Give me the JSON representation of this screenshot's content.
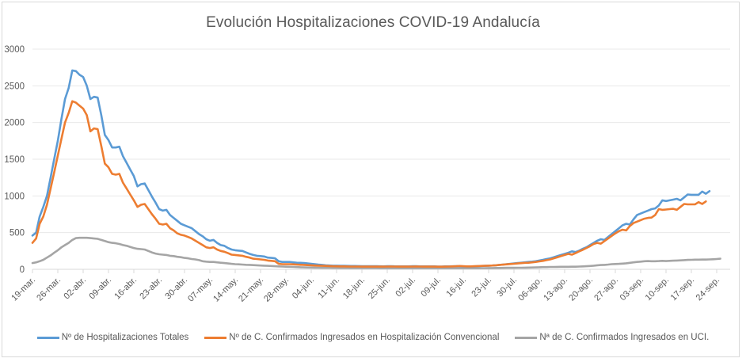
{
  "chart_data": {
    "type": "line",
    "title": "Evolución Hospitalizaciones COVID-19 Andalucía",
    "xlabel": "",
    "ylabel": "",
    "ylim": [
      0,
      3000
    ],
    "yticks": [
      "0",
      "500",
      "1000",
      "1500",
      "2000",
      "2500",
      "3000"
    ],
    "ytick_values": [
      0,
      500,
      1000,
      1500,
      2000,
      2500,
      3000
    ],
    "grid": true,
    "legend_position": "bottom",
    "x_start": "19-mar.",
    "x_step_days": 1,
    "xtick_every_days": 7,
    "xticks": [
      "19-mar.",
      "26-mar.",
      "02-abr.",
      "09-abr.",
      "16-abr.",
      "23-abr.",
      "30-abr.",
      "07-may.",
      "14-may.",
      "21-may.",
      "28-may.",
      "04-jun.",
      "11-jun.",
      "18-jun.",
      "25-jun.",
      "02-jul.",
      "09-jul.",
      "16-jul.",
      "23-jul.",
      "30-jul.",
      "06-ago.",
      "13-ago.",
      "20-ago.",
      "27-ago.",
      "03-sep.",
      "10-sep.",
      "17-sep.",
      "24-sep."
    ],
    "series": [
      {
        "name": "Nº de Hospitalizaciones Totales",
        "color": "#5b9bd5",
        "values": [
          460,
          500,
          720,
          850,
          1000,
          1250,
          1500,
          1750,
          2050,
          2320,
          2470,
          2710,
          2700,
          2650,
          2620,
          2500,
          2320,
          2350,
          2340,
          2100,
          1830,
          1760,
          1660,
          1660,
          1670,
          1540,
          1450,
          1360,
          1270,
          1130,
          1160,
          1170,
          1080,
          990,
          910,
          820,
          800,
          810,
          740,
          700,
          660,
          620,
          600,
          580,
          560,
          520,
          480,
          450,
          410,
          390,
          400,
          360,
          330,
          320,
          290,
          270,
          260,
          255,
          250,
          230,
          210,
          195,
          185,
          180,
          175,
          160,
          155,
          150,
          110,
          100,
          100,
          100,
          95,
          90,
          88,
          85,
          80,
          75,
          70,
          65,
          60,
          55,
          52,
          50,
          50,
          48,
          47,
          46,
          45,
          45,
          44,
          43,
          42,
          42,
          42,
          42,
          41,
          40,
          42,
          43,
          41,
          40,
          40,
          40,
          40,
          42,
          42,
          40,
          40,
          40,
          40,
          40,
          38,
          38,
          40,
          40,
          41,
          42,
          42,
          40,
          38,
          38,
          40,
          42,
          45,
          48,
          50,
          52,
          55,
          60,
          65,
          70,
          75,
          80,
          85,
          90,
          95,
          100,
          105,
          110,
          120,
          130,
          140,
          150,
          165,
          180,
          195,
          210,
          225,
          245,
          235,
          255,
          280,
          300,
          330,
          360,
          390,
          410,
          400,
          440,
          480,
          520,
          560,
          600,
          620,
          610,
          680,
          740,
          760,
          780,
          800,
          820,
          830,
          870,
          940,
          930,
          940,
          950,
          960,
          940,
          980,
          1020,
          1015,
          1015,
          1015,
          1060,
          1030,
          1065
        ]
      },
      {
        "name": "Nº de C. Confirmados Ingresados en Hospitalización Convencional",
        "color": "#ed7d31",
        "values": [
          360,
          420,
          620,
          720,
          880,
          1100,
          1320,
          1550,
          1780,
          2000,
          2130,
          2290,
          2270,
          2230,
          2190,
          2100,
          1880,
          1920,
          1910,
          1680,
          1440,
          1390,
          1300,
          1290,
          1300,
          1180,
          1100,
          1020,
          940,
          850,
          880,
          890,
          820,
          750,
          690,
          620,
          610,
          620,
          560,
          530,
          490,
          470,
          460,
          440,
          420,
          390,
          360,
          330,
          300,
          290,
          300,
          270,
          250,
          240,
          220,
          200,
          195,
          190,
          185,
          170,
          160,
          145,
          140,
          135,
          130,
          120,
          115,
          110,
          75,
          70,
          70,
          70,
          68,
          65,
          62,
          60,
          57,
          55,
          52,
          50,
          48,
          46,
          44,
          42,
          41,
          40,
          40,
          39,
          38,
          38,
          38,
          37,
          37,
          37,
          37,
          38,
          37,
          37,
          38,
          39,
          38,
          37,
          37,
          37,
          37,
          38,
          39,
          38,
          37,
          37,
          37,
          37,
          36,
          36,
          37,
          38,
          40,
          42,
          45,
          42,
          40,
          40,
          42,
          44,
          46,
          48,
          50,
          52,
          55,
          60,
          64,
          68,
          72,
          76,
          80,
          84,
          88,
          90,
          95,
          100,
          108,
          116,
          125,
          135,
          150,
          165,
          180,
          195,
          210,
          200,
          220,
          245,
          265,
          290,
          315,
          345,
          360,
          350,
          385,
          420,
          455,
          490,
          520,
          540,
          530,
          590,
          630,
          650,
          670,
          690,
          700,
          705,
          740,
          820,
          810,
          815,
          820,
          825,
          810,
          850,
          890,
          885,
          885,
          885,
          915,
          890,
          925
        ]
      },
      {
        "name": "Nª de C. Confirmados Ingresados en UCI.",
        "color": "#a5a5a5",
        "values": [
          85,
          95,
          110,
          130,
          160,
          190,
          225,
          260,
          300,
          330,
          360,
          400,
          425,
          430,
          430,
          430,
          425,
          420,
          415,
          400,
          385,
          370,
          360,
          355,
          345,
          330,
          320,
          305,
          290,
          280,
          275,
          270,
          250,
          230,
          215,
          205,
          200,
          195,
          185,
          180,
          170,
          165,
          155,
          150,
          140,
          135,
          125,
          110,
          105,
          100,
          100,
          95,
          90,
          85,
          80,
          75,
          70,
          68,
          65,
          62,
          60,
          57,
          55,
          52,
          50,
          48,
          45,
          42,
          40,
          38,
          36,
          34,
          32,
          30,
          28,
          26,
          25,
          24,
          23,
          22,
          21,
          20,
          20,
          19,
          19,
          18,
          18,
          18,
          17,
          17,
          17,
          16,
          16,
          16,
          16,
          16,
          15,
          15,
          15,
          15,
          15,
          15,
          15,
          15,
          15,
          15,
          15,
          15,
          15,
          15,
          15,
          15,
          15,
          15,
          15,
          15,
          15,
          15,
          15,
          15,
          15,
          15,
          15,
          15,
          16,
          16,
          17,
          17,
          18,
          18,
          19,
          20,
          20,
          21,
          22,
          22,
          23,
          24,
          25,
          26,
          28,
          30,
          30,
          32,
          32,
          33,
          34,
          35,
          35,
          36,
          36,
          38,
          40,
          42,
          45,
          50,
          55,
          58,
          60,
          65,
          70,
          72,
          75,
          78,
          82,
          88,
          95,
          100,
          105,
          110,
          112,
          110,
          110,
          112,
          115,
          112,
          115,
          118,
          120,
          122,
          125,
          128,
          130,
          132,
          132,
          133,
          133,
          135,
          137,
          140,
          145
        ]
      }
    ]
  },
  "legend": {
    "items": [
      {
        "label": "Nº de Hospitalizaciones Totales",
        "color": "#5b9bd5"
      },
      {
        "label": "Nº de C. Confirmados Ingresados en Hospitalización Convencional",
        "color": "#ed7d31"
      },
      {
        "label": "Nª de C. Confirmados Ingresados en UCI.",
        "color": "#a5a5a5"
      }
    ]
  }
}
